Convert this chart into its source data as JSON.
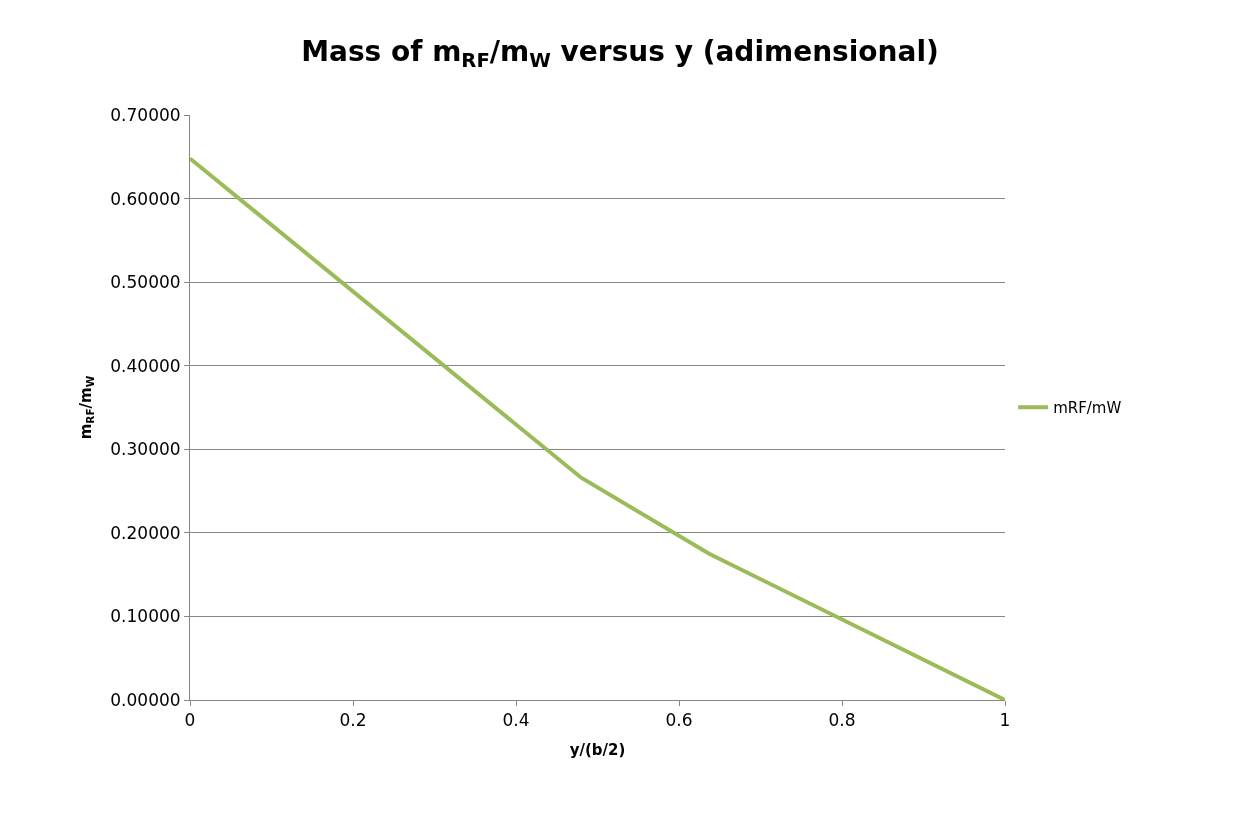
{
  "chart_data": {
    "type": "line",
    "title": "Mass of m$_{RF}$/m$_{W}$ versus y (adimensional)",
    "xlabel": "y/(b/2)",
    "ylabel": "m$_{RF}$/m$_{W}$",
    "x": [
      0,
      0.48,
      0.637,
      1
    ],
    "series": [
      {
        "name": "mRF/mW",
        "color": "#9bbb59",
        "values": [
          0.648,
          0.266,
          0.175,
          0
        ]
      }
    ],
    "xlim": [
      0,
      1
    ],
    "xticks": [
      0,
      0.2,
      0.4,
      0.6,
      0.8,
      1
    ],
    "ylim": [
      0,
      0.7
    ],
    "yticks": [
      {
        "value": 0,
        "label": "0.00000"
      },
      {
        "value": 0.1,
        "label": "0.10000"
      },
      {
        "value": 0.2,
        "label": "0.20000"
      },
      {
        "value": 0.3,
        "label": "0.30000"
      },
      {
        "value": 0.4,
        "label": "0.40000"
      },
      {
        "value": 0.5,
        "label": "0.50000"
      },
      {
        "value": 0.6,
        "label": "0.60000"
      },
      {
        "value": 0.7,
        "label": "0.70000"
      }
    ],
    "grid": "y",
    "legend": "right",
    "marker": "none",
    "line_style": "solid"
  }
}
